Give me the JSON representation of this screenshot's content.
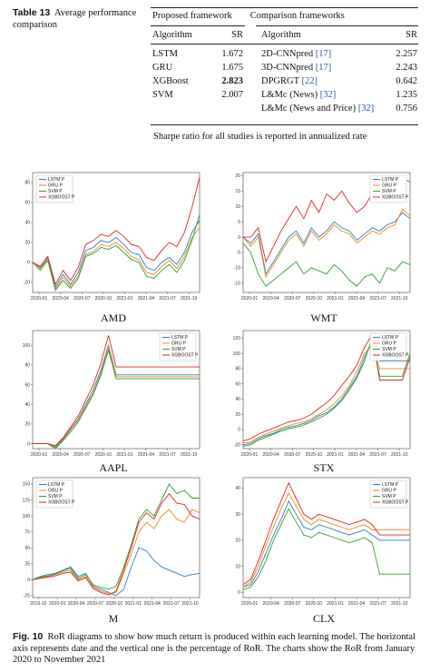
{
  "table": {
    "caption_label": "Table 13",
    "caption_text": "Average performance comparison",
    "group_left": "Proposed framework",
    "group_right": "Comparison frameworks",
    "col_algorithm": "Algorithm",
    "col_sr": "SR",
    "left_rows": [
      {
        "algorithm": "LSTM",
        "sr": "1.672"
      },
      {
        "algorithm": "GRU",
        "sr": "1.675"
      },
      {
        "algorithm": "XGBoost",
        "sr": "2.823"
      },
      {
        "algorithm": "SVM",
        "sr": "2.007"
      }
    ],
    "right_rows": [
      {
        "algorithm": "2D-CNNpred ",
        "ref": "[17]",
        "sr": "2.257"
      },
      {
        "algorithm": "3D-CNNpred ",
        "ref": "[17]",
        "sr": "2.243"
      },
      {
        "algorithm": "DPGRGT ",
        "ref": "[22]",
        "sr": "0.642"
      },
      {
        "algorithm": "L&Mc (News) ",
        "ref": "[32]",
        "sr": "1.235"
      },
      {
        "algorithm": "L&Mc (News and Price) ",
        "ref": "[32]",
        "sr": "0.756"
      }
    ],
    "note": "Sharpe ratio for all studies is reported in annualized rate"
  },
  "colors": {
    "lstm": "#2a7fc1",
    "gru": "#f08a1c",
    "svm": "#2ca02c",
    "xgboost": "#d62728",
    "ref_link": "#2b57a8"
  },
  "chart_data": [
    {
      "type": "line",
      "title": "AMD",
      "legend": [
        "LSTM P",
        "GRU P",
        "SVM P",
        "XGBOOST P"
      ],
      "legend_position": "top-left",
      "xticks": [
        "2020-01",
        "2020-04",
        "2020-07",
        "2020-10",
        "2021-01",
        "2021-04",
        "2021-07",
        "2021-10"
      ],
      "ylim": [
        -30,
        90
      ],
      "yticks": [
        -20,
        0,
        20,
        40,
        60,
        80
      ],
      "x": [
        0,
        1,
        2,
        3,
        4,
        5,
        6,
        7,
        8,
        9,
        10,
        11,
        12,
        13,
        14,
        15,
        16,
        17,
        18,
        19,
        20,
        21,
        22
      ],
      "series": [
        {
          "name": "LSTM P",
          "values": [
            0,
            -5,
            5,
            -25,
            -12,
            -22,
            -10,
            12,
            15,
            22,
            20,
            25,
            18,
            10,
            8,
            -5,
            -8,
            0,
            5,
            -2,
            10,
            30,
            42
          ]
        },
        {
          "name": "GRU P",
          "values": [
            0,
            -6,
            3,
            -27,
            -15,
            -24,
            -14,
            8,
            11,
            18,
            16,
            20,
            14,
            6,
            3,
            -10,
            -12,
            -4,
            2,
            -6,
            6,
            25,
            35
          ]
        },
        {
          "name": "SVM P",
          "values": [
            0,
            -8,
            2,
            -28,
            -18,
            -26,
            -16,
            6,
            9,
            15,
            13,
            17,
            10,
            3,
            0,
            -14,
            -16,
            -8,
            -2,
            -10,
            2,
            22,
            48
          ]
        },
        {
          "name": "XGBOOST P",
          "values": [
            0,
            -4,
            6,
            -22,
            -8,
            -18,
            -5,
            18,
            22,
            28,
            26,
            32,
            26,
            18,
            16,
            5,
            2,
            12,
            20,
            16,
            30,
            55,
            85
          ]
        }
      ]
    },
    {
      "type": "line",
      "title": "WMT",
      "legend": [
        "LSTM P",
        "GRU P",
        "SVM P",
        "XGBOOST P"
      ],
      "legend_position": "top-right",
      "xticks": [
        "2020-01",
        "2020-04",
        "2020-07",
        "2020-10",
        "2021-01",
        "2021-04",
        "2021-07",
        "2021-10"
      ],
      "ylim": [
        -18,
        21
      ],
      "yticks": [
        -15,
        -10,
        -5,
        0,
        5,
        10,
        15,
        20
      ],
      "x": [
        0,
        1,
        2,
        3,
        4,
        5,
        6,
        7,
        8,
        9,
        10,
        11,
        12,
        13,
        14,
        15,
        16,
        17,
        18,
        19,
        20,
        21,
        22
      ],
      "series": [
        {
          "name": "LSTM P",
          "values": [
            0,
            -2,
            1,
            -12,
            -8,
            -4,
            0,
            2,
            -2,
            3,
            0,
            2,
            5,
            3,
            2,
            -1,
            1,
            3,
            2,
            4,
            5,
            8,
            6
          ]
        },
        {
          "name": "GRU P",
          "values": [
            0,
            -3,
            0,
            -13,
            -9,
            -5,
            -1,
            1,
            -3,
            2,
            -1,
            1,
            4,
            2,
            1,
            -2,
            0,
            2,
            1,
            3,
            4,
            9,
            7
          ]
        },
        {
          "name": "SVM P",
          "values": [
            -2,
            -5,
            -12,
            -16,
            -14,
            -12,
            -10,
            -8,
            -12,
            -10,
            -11,
            -12,
            -9,
            -11,
            -14,
            -16,
            -13,
            -12,
            -15,
            -10,
            -11,
            -8,
            -9
          ]
        },
        {
          "name": "XGBOOST P",
          "values": [
            0,
            0,
            3,
            -8,
            -3,
            2,
            6,
            10,
            6,
            12,
            8,
            14,
            12,
            15,
            11,
            8,
            10,
            14,
            12,
            15,
            16,
            19,
            18
          ]
        }
      ]
    },
    {
      "type": "line",
      "title": "AAPL",
      "legend": [
        "LSTM P",
        "GRU P",
        "SVM P",
        "XGBOOST P"
      ],
      "legend_position": "top-right",
      "xticks": [
        "2020-01",
        "2020-04",
        "2020-07",
        "2020-10",
        "2021-01",
        "2021-04",
        "2021-07",
        "2021-10"
      ],
      "ylim": [
        -5,
        115
      ],
      "yticks": [
        0,
        20,
        40,
        60,
        80,
        100
      ],
      "x": [
        0,
        1,
        2,
        3,
        4,
        5,
        6,
        7,
        8,
        9,
        10,
        11,
        12,
        13,
        14,
        15,
        16,
        17,
        18,
        19,
        20,
        21,
        22
      ],
      "series": [
        {
          "name": "LSTM P",
          "values": [
            0,
            0,
            0,
            -3,
            5,
            15,
            25,
            40,
            55,
            75,
            100,
            70,
            70,
            70,
            70,
            70,
            70,
            70,
            70,
            70,
            70,
            70,
            70
          ]
        },
        {
          "name": "GRU P",
          "values": [
            0,
            0,
            0,
            -4,
            4,
            14,
            24,
            38,
            52,
            72,
            98,
            68,
            68,
            68,
            68,
            68,
            68,
            68,
            68,
            68,
            68,
            68,
            68
          ]
        },
        {
          "name": "SVM P",
          "values": [
            0,
            0,
            0,
            -5,
            3,
            12,
            22,
            36,
            50,
            70,
            95,
            66,
            66,
            66,
            66,
            66,
            66,
            66,
            66,
            66,
            66,
            66,
            66
          ]
        },
        {
          "name": "XGBOOST P",
          "values": [
            0,
            0,
            0,
            -2,
            6,
            17,
            28,
            44,
            60,
            82,
            110,
            78,
            78,
            78,
            78,
            78,
            78,
            78,
            78,
            78,
            78,
            78,
            78
          ]
        }
      ]
    },
    {
      "type": "line",
      "title": "STX",
      "legend": [
        "LSTM P",
        "GRU P",
        "SVM P",
        "XGBOOST P"
      ],
      "legend_position": "top-right",
      "xticks": [
        "2020-01",
        "2020-04",
        "2020-07",
        "2020-10",
        "2021-01",
        "2021-04",
        "2021-07",
        "2021-10"
      ],
      "ylim": [
        -25,
        130
      ],
      "yticks": [
        -20,
        0,
        20,
        40,
        60,
        80,
        100,
        120
      ],
      "x": [
        0,
        1,
        2,
        3,
        4,
        5,
        6,
        7,
        8,
        9,
        10,
        11,
        12,
        13,
        14,
        15,
        16,
        17,
        18,
        19,
        20,
        21,
        22
      ],
      "series": [
        {
          "name": "LSTM P",
          "values": [
            -20,
            -18,
            -12,
            -8,
            -5,
            0,
            3,
            5,
            8,
            12,
            18,
            22,
            30,
            40,
            55,
            70,
            95,
            115,
            90,
            90,
            90,
            90,
            90
          ]
        },
        {
          "name": "GRU P",
          "values": [
            -18,
            -16,
            -10,
            -6,
            -2,
            2,
            5,
            8,
            10,
            14,
            20,
            26,
            34,
            44,
            58,
            76,
            100,
            110,
            80,
            80,
            80,
            80,
            80
          ]
        },
        {
          "name": "SVM P",
          "values": [
            -22,
            -20,
            -14,
            -10,
            -6,
            -2,
            1,
            3,
            6,
            10,
            15,
            20,
            28,
            38,
            52,
            68,
            90,
            120,
            70,
            70,
            70,
            70,
            100
          ]
        },
        {
          "name": "XGBOOST P",
          "values": [
            -15,
            -12,
            -6,
            -2,
            2,
            6,
            10,
            12,
            15,
            20,
            28,
            35,
            45,
            58,
            70,
            85,
            108,
            125,
            65,
            65,
            65,
            65,
            95
          ]
        }
      ]
    },
    {
      "type": "line",
      "title": "M",
      "legend": [
        "LSTM P",
        "GRU P",
        "SVM P",
        "XGBOOST P"
      ],
      "legend_position": "top-left",
      "xticks": [
        "2019-10",
        "2020-01",
        "2020-04",
        "2020-07",
        "2020-10",
        "2021-01",
        "2021-04",
        "2021-07",
        "2021-10"
      ],
      "ylim": [
        -28,
        160
      ],
      "yticks": [
        -25,
        0,
        25,
        50,
        75,
        100,
        125,
        150
      ],
      "x": [
        0,
        1,
        2,
        3,
        4,
        5,
        6,
        7,
        8,
        9,
        10,
        11,
        12,
        13,
        14,
        15,
        16,
        17,
        18,
        19,
        20,
        21,
        22
      ],
      "series": [
        {
          "name": "LSTM P",
          "values": [
            0,
            5,
            8,
            10,
            15,
            20,
            5,
            10,
            -10,
            -15,
            -20,
            -25,
            -15,
            20,
            50,
            45,
            30,
            20,
            15,
            10,
            5,
            8,
            10
          ]
        },
        {
          "name": "GRU P",
          "values": [
            0,
            3,
            5,
            8,
            12,
            15,
            0,
            5,
            -12,
            -18,
            -22,
            -20,
            10,
            40,
            75,
            90,
            80,
            100,
            110,
            95,
            90,
            110,
            105
          ]
        },
        {
          "name": "SVM P",
          "values": [
            0,
            4,
            6,
            9,
            14,
            18,
            2,
            8,
            -8,
            -12,
            -15,
            -10,
            20,
            55,
            95,
            110,
            100,
            125,
            150,
            135,
            140,
            128,
            128
          ]
        },
        {
          "name": "XGBOOST P",
          "values": [
            0,
            2,
            4,
            6,
            10,
            12,
            -2,
            3,
            -14,
            -20,
            -24,
            -18,
            15,
            50,
            90,
            105,
            95,
            120,
            135,
            120,
            118,
            100,
            95
          ]
        }
      ]
    },
    {
      "type": "line",
      "title": "CLX",
      "legend": [
        "LSTM P",
        "GRU P",
        "SVM P",
        "XGBOOST P"
      ],
      "legend_position": "top-right",
      "xticks": [
        "2020-01",
        "2020-04",
        "2020-07",
        "2020-10",
        "2021-01",
        "2021-04",
        "2021-07",
        "2021-10"
      ],
      "ylim": [
        -2,
        44
      ],
      "yticks": [
        0,
        10,
        20,
        30,
        40
      ],
      "x": [
        0,
        1,
        2,
        3,
        4,
        5,
        6,
        7,
        8,
        9,
        10,
        11,
        12,
        13,
        14,
        15,
        16,
        17,
        18,
        19,
        20,
        21,
        22
      ],
      "series": [
        {
          "name": "LSTM P",
          "values": [
            2,
            3,
            8,
            15,
            22,
            28,
            35,
            30,
            25,
            24,
            26,
            25,
            24,
            23,
            22,
            23,
            24,
            22,
            20,
            20,
            20,
            20,
            20
          ]
        },
        {
          "name": "GRU P",
          "values": [
            2,
            4,
            10,
            18,
            25,
            32,
            38,
            33,
            28,
            26,
            28,
            27,
            26,
            25,
            24,
            25,
            26,
            24,
            24,
            24,
            24,
            24,
            24
          ]
        },
        {
          "name": "SVM P",
          "values": [
            1,
            2,
            6,
            12,
            20,
            26,
            32,
            27,
            22,
            21,
            23,
            22,
            21,
            20,
            19,
            20,
            21,
            19,
            7,
            7,
            7,
            7,
            7
          ]
        },
        {
          "name": "XGBOOST P",
          "values": [
            3,
            5,
            12,
            20,
            28,
            35,
            42,
            36,
            30,
            28,
            30,
            29,
            28,
            27,
            26,
            27,
            28,
            26,
            22,
            22,
            22,
            22,
            22
          ]
        }
      ]
    }
  ],
  "figure": {
    "caption_label": "Fig. 10",
    "caption_text": "RoR diagrams to show how much return is produced within each learning model. The horizontal axis represents date and the vertical one is the percentage of RoR. The charts show the RoR from January 2020 to November 2021"
  }
}
